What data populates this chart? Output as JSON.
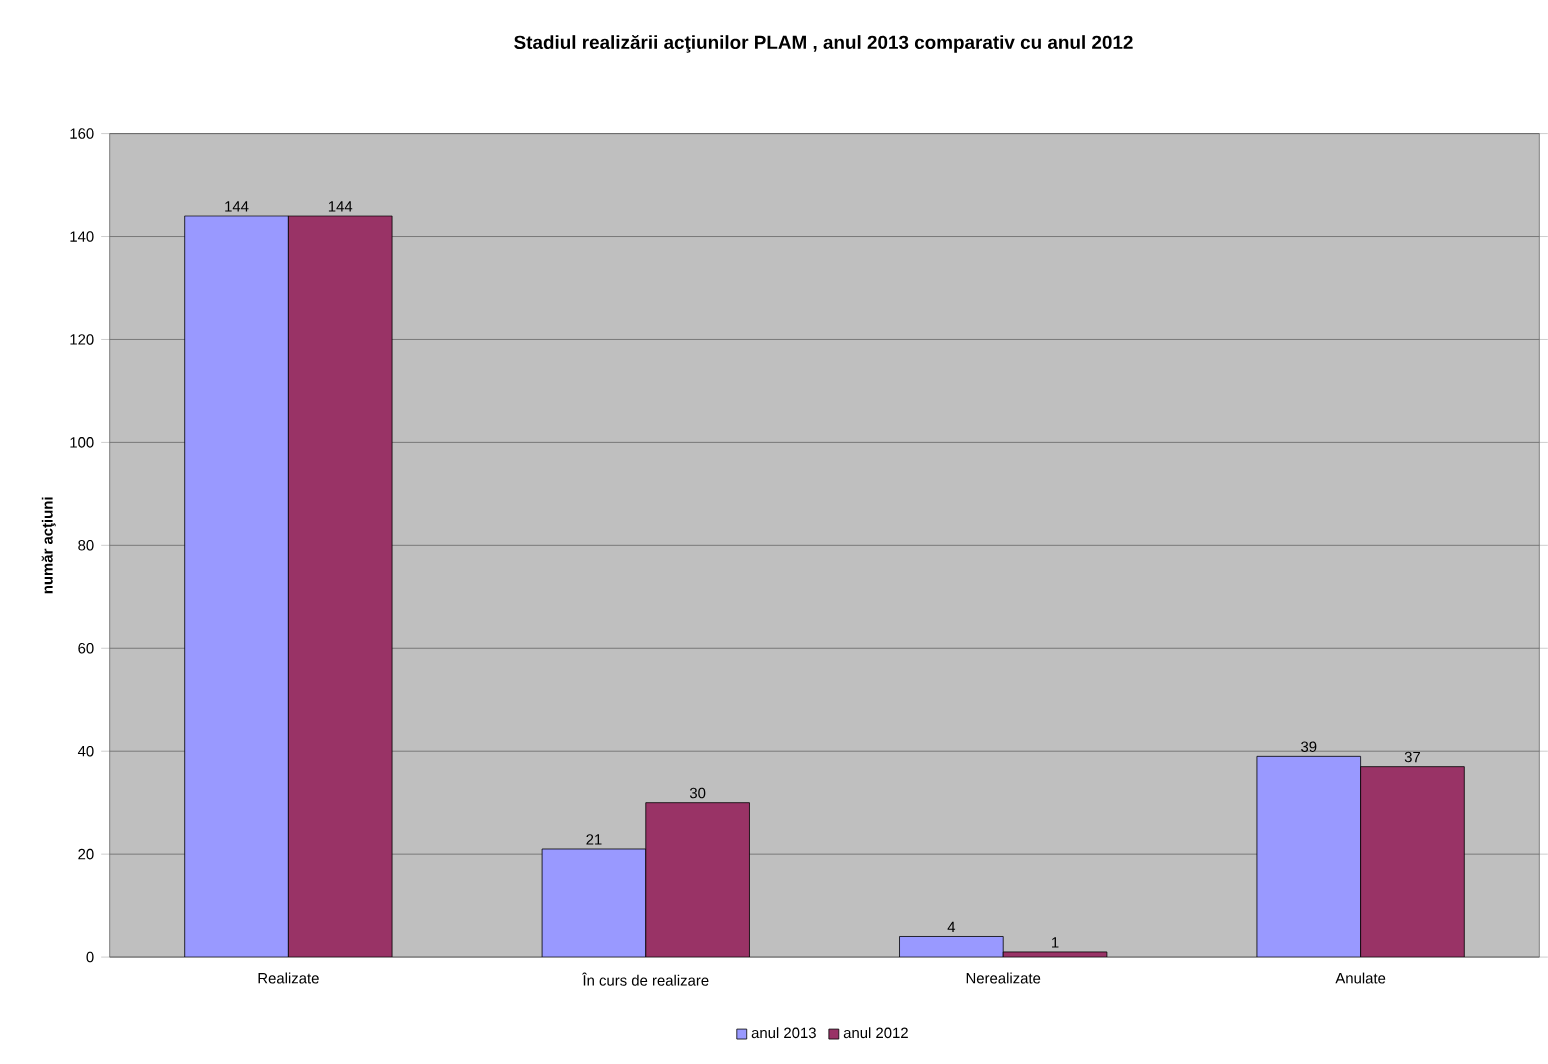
{
  "chart_data": {
    "type": "bar",
    "title": "Stadiul realizării acţiunilor PLAM , anul 2013 comparativ cu anul 2012",
    "ylabel": "număr acţiuni",
    "categories": [
      "Realizate",
      "În curs de realizare",
      "Nerealizate",
      "Anulate"
    ],
    "series": [
      {
        "name": "anul 2013",
        "color": "#9999ff",
        "values": [
          144,
          21,
          4,
          39
        ]
      },
      {
        "name": "anul 2012",
        "color": "#993366",
        "values": [
          144,
          30,
          1,
          37
        ]
      }
    ],
    "ylim": [
      0,
      160
    ],
    "yticks": [
      0,
      20,
      40,
      60,
      80,
      100,
      120,
      140,
      160
    ],
    "grid": "y",
    "legend": "bottom",
    "data_labels": true
  }
}
